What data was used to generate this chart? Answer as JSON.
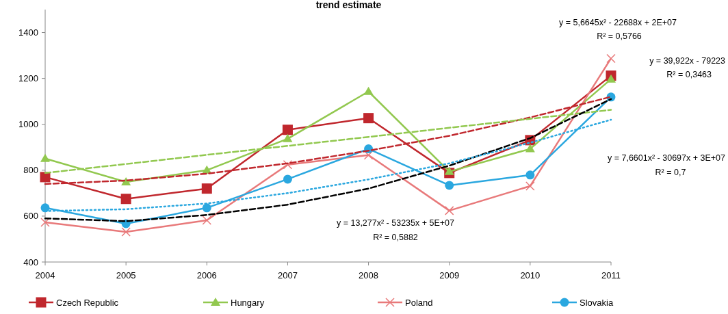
{
  "chart_data": {
    "type": "line",
    "title": "trend estimate",
    "categories": [
      "2004",
      "2005",
      "2006",
      "2007",
      "2008",
      "2009",
      "2010",
      "2011"
    ],
    "ylim": [
      400,
      1500
    ],
    "yticks": [
      400,
      600,
      800,
      1000,
      1200,
      1400
    ],
    "grid": false,
    "legend": "bottom",
    "series": [
      {
        "name": "Czech Republic",
        "color": "#c0272d",
        "marker": "square",
        "values": [
          770,
          675,
          720,
          976,
          1027,
          788,
          931,
          1212
        ]
      },
      {
        "name": "Hungary",
        "color": "#92c84f",
        "marker": "triangle",
        "values": [
          851,
          749,
          800,
          937,
          1143,
          794,
          893,
          1197
        ]
      },
      {
        "name": "Poland",
        "color": "#e8797a",
        "marker": "cross",
        "values": [
          573,
          531,
          582,
          824,
          866,
          624,
          731,
          1287
        ]
      },
      {
        "name": "Slovakia",
        "color": "#2aa7df",
        "marker": "circle",
        "values": [
          636,
          567,
          636,
          761,
          893,
          734,
          779,
          1119
        ]
      },
      {
        "type": "line",
        "color": "#c0272d",
        "marker": "none",
        "line_style": "dashed",
        "values": [
          740,
          755,
          785,
          830,
          885,
          950,
          1030,
          1120
        ]
      },
      {
        "type": "line",
        "color": "#92c84f",
        "marker": "none",
        "line_style": "dashed",
        "values": [
          788,
          827,
          867,
          906,
          945,
          985,
          1024,
          1063
        ]
      },
      {
        "type": "line",
        "color": "#000000",
        "marker": "none",
        "line_style": "dashed",
        "values": [
          590,
          578,
          605,
          650,
          720,
          820,
          940,
          1110
        ]
      },
      {
        "type": "line",
        "color": "#2aa7df",
        "marker": "none",
        "line_style": "dotted",
        "values": [
          622,
          630,
          655,
          700,
          760,
          830,
          920,
          1020
        ]
      }
    ],
    "annotations": [
      "y = 5,6645x² - 22688x + 2E+07",
      "R² = 0,5766",
      "y = 39,922x - 79223",
      "R² = 0,3463",
      "y = 7,6601x² - 30697x + 3E+07",
      "R² = 0,7",
      "y = 13,277x² - 53235x + 5E+07",
      "R² = 0,5882"
    ]
  }
}
